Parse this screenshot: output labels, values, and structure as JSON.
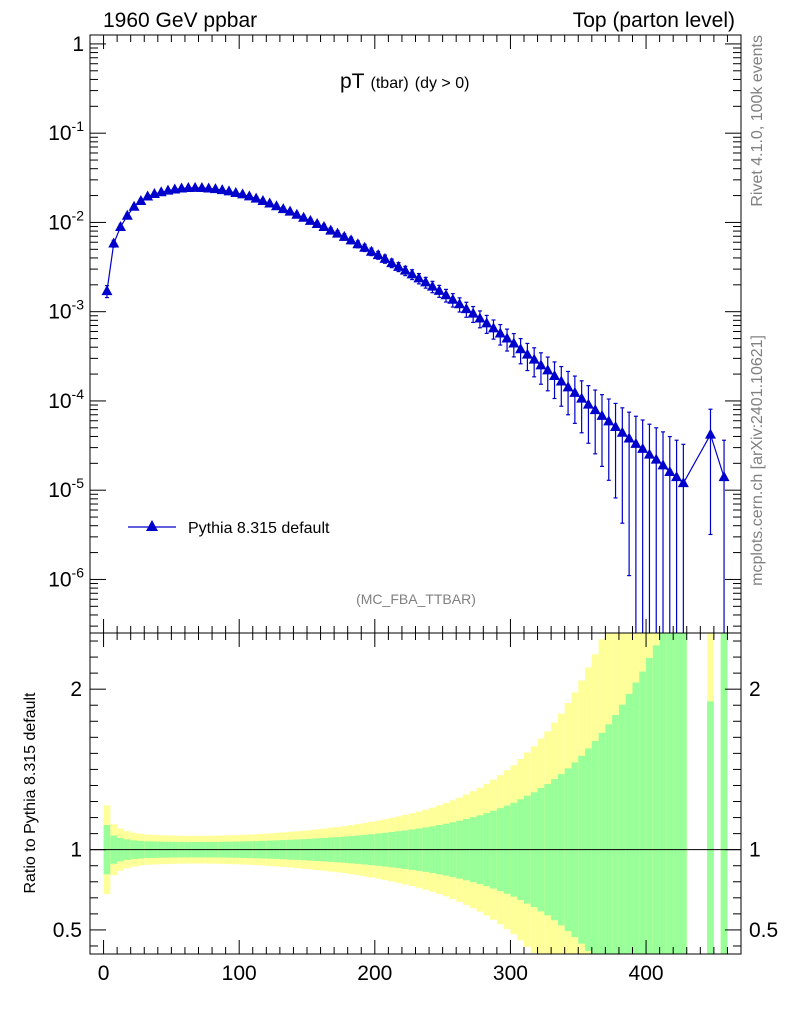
{
  "header": {
    "left": "1960 GeV ppbar",
    "right": "Top (parton level)"
  },
  "side": {
    "rivet": "Rivet 4.1.0,  100k events",
    "mcplots": "mcplots.cern.ch [arXiv:2401.10621]"
  },
  "colors": {
    "series": "#0000cc",
    "band_outer": "#ffff99",
    "band_inner": "#99ff99"
  },
  "chart_data": [
    {
      "type": "line",
      "title": "pT",
      "title_sub": "(tbar)",
      "title_tail": "(dy > 0)",
      "analysis": "(MC_FBA_TTBAR)",
      "yscale": "log",
      "xlim": [
        -10,
        470
      ],
      "ylim_exp": [
        -6.6,
        0.1
      ],
      "y_ticks": [
        "1",
        "10^-1",
        "10^-2",
        "10^-3",
        "10^-4",
        "10^-5",
        "10^-6"
      ],
      "legend": "Pythia 8.315 default",
      "series": [
        {
          "name": "Pythia 8.315 default",
          "x": [
            2.5,
            7.5,
            12.5,
            17.5,
            22.5,
            27.5,
            32.5,
            37.5,
            42.5,
            47.5,
            52.5,
            57.5,
            62.5,
            67.5,
            72.5,
            77.5,
            82.5,
            87.5,
            92.5,
            97.5,
            102.5,
            107.5,
            112.5,
            117.5,
            122.5,
            127.5,
            132.5,
            137.5,
            142.5,
            147.5,
            152.5,
            157.5,
            162.5,
            167.5,
            172.5,
            177.5,
            182.5,
            187.5,
            192.5,
            197.5,
            202.5,
            207.5,
            212.5,
            217.5,
            222.5,
            227.5,
            232.5,
            237.5,
            242.5,
            247.5,
            252.5,
            257.5,
            262.5,
            267.5,
            272.5,
            277.5,
            282.5,
            287.5,
            292.5,
            297.5,
            302.5,
            307.5,
            312.5,
            317.5,
            322.5,
            327.5,
            332.5,
            337.5,
            342.5,
            347.5,
            352.5,
            357.5,
            362.5,
            367.5,
            372.5,
            377.5,
            382.5,
            387.5,
            392.5,
            397.5,
            402.5,
            407.5,
            412.5,
            417.5,
            422.5,
            427.5,
            447.5,
            457.5
          ],
          "y": [
            0.0017,
            0.0058,
            0.0089,
            0.0119,
            0.015,
            0.0174,
            0.0195,
            0.0208,
            0.0218,
            0.0227,
            0.0234,
            0.024,
            0.0243,
            0.0244,
            0.0243,
            0.024,
            0.0236,
            0.023,
            0.0223,
            0.0214,
            0.0206,
            0.0196,
            0.0185,
            0.0174,
            0.0163,
            0.0152,
            0.0141,
            0.0132,
            0.0122,
            0.0113,
            0.0104,
            0.0096,
            0.0089,
            0.0081,
            0.0075,
            0.0069,
            0.0063,
            0.0057,
            0.0052,
            0.0047,
            0.0043,
            0.0039,
            0.0035,
            0.00318,
            0.00288,
            0.00262,
            0.00236,
            0.00213,
            0.00191,
            0.00171,
            0.00153,
            0.00136,
            0.00121,
            0.00107,
            0.00095,
            0.00084,
            0.00074,
            0.00065,
            0.00057,
            0.0005,
            0.00044,
            0.00038,
            0.00033,
            0.00029,
            0.00025,
            0.00022,
            0.00019,
            0.000165,
            0.000142,
            0.000123,
            0.000106,
            9.1e-05,
            7.9e-05,
            6.8e-05,
            5.9e-05,
            5.1e-05,
            4.4e-05,
            3.8e-05,
            3.3e-05,
            2.9e-05,
            2.5e-05,
            2.2e-05,
            1.9e-05,
            1.6e-05,
            1.4e-05,
            1.2e-05,
            4.2e-05,
            1.4e-05
          ]
        }
      ]
    },
    {
      "type": "area",
      "ylabel": "Ratio to Pythia 8.315 default",
      "xlim": [
        -10,
        470
      ],
      "ylim": [
        0.35,
        2.35
      ],
      "x_ticks": [
        "0",
        "100",
        "200",
        "300",
        "400"
      ],
      "y_ticks": [
        "0.5",
        "1",
        "2"
      ],
      "reference": 1,
      "bin_width": 5
    }
  ]
}
